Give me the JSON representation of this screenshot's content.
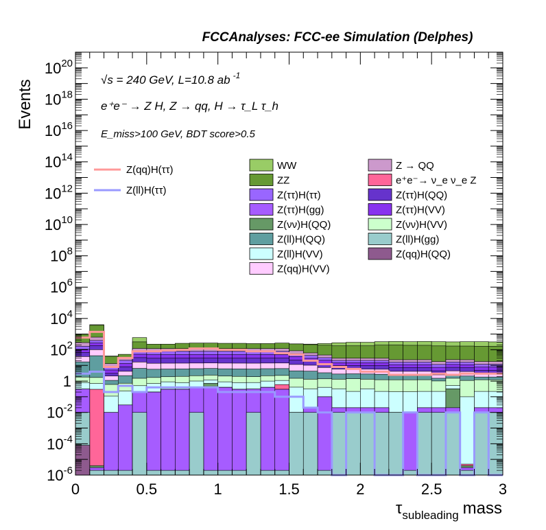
{
  "header": {
    "title": "FCCAnalyses: FCC-ee Simulation (Delphes)",
    "energy_line": "√s = 240 GeV, L=10.8 ab",
    "energy_exp": "-1",
    "process_line": "e⁺e⁻ → Z H, Z  → qq, H  → τ_L τ_h",
    "cut_line": "E_miss>100 GeV, BDT score>0.5"
  },
  "chart_data": {
    "type": "bar",
    "stacked": true,
    "log_y": true,
    "xlabel": "τ_subleading mass",
    "ylabel": "Events",
    "xlim": [
      0,
      3
    ],
    "ylim": [
      1e-06,
      1e+21
    ],
    "x_ticks": [
      "0",
      "0.5",
      "1",
      "1.5",
      "2",
      "2.5",
      "3"
    ],
    "y_ticks": [
      "10^-6",
      "10^-4",
      "10^-2",
      "1",
      "10^2",
      "10^4",
      "10^6",
      "10^8",
      "10^10",
      "10^12",
      "10^14",
      "10^16",
      "10^18",
      "10^20"
    ],
    "bin_edges": [
      0,
      0.1,
      0.2,
      0.3,
      0.4,
      0.5,
      0.6,
      0.7,
      0.8,
      0.9,
      1.0,
      1.1,
      1.2,
      1.3,
      1.4,
      1.5,
      1.6,
      1.7,
      1.8,
      1.9,
      2.0,
      2.1,
      2.2,
      2.3,
      2.4,
      2.5,
      2.6,
      2.7,
      2.8,
      2.9,
      3.0
    ],
    "stack_totals": [
      1000,
      4000,
      40,
      30,
      600,
      200,
      180,
      220,
      250,
      260,
      240,
      230,
      220,
      230,
      260,
      240,
      230,
      250,
      280,
      300,
      300,
      330,
      340,
      330,
      340,
      330,
      320,
      330,
      330,
      320
    ],
    "stack_layers": [
      {
        "name": "Z(qq)H(QQ)",
        "color": "#8e5a8e",
        "values": [
          8e-05,
          1e-06,
          1e-06,
          1e-06,
          1e-06,
          1e-06,
          1e-06,
          1e-06,
          1e-06,
          1e-06,
          1e-06,
          1e-06,
          1e-06,
          1e-06,
          1e-06,
          1e-06,
          1e-06,
          1e-06,
          1e-06,
          1e-06,
          1e-06,
          1e-06,
          1e-06,
          1e-06,
          1e-06,
          1e-06,
          1e-06,
          1e-06,
          1e-06,
          1e-06
        ]
      },
      {
        "name": "Z(ll)H(gg)",
        "color": "#99cccc",
        "values": [
          0.01,
          1e-06,
          1e-06,
          1e-06,
          0.01,
          1e-06,
          1e-06,
          1e-06,
          0.01,
          1e-06,
          1e-06,
          1e-06,
          0.01,
          1e-06,
          1e-06,
          0.01,
          0.01,
          1e-06,
          0.01,
          0.01,
          0.01,
          0.01,
          0.01,
          1e-06,
          0.01,
          0.01,
          0.01,
          1e-06,
          0.01,
          0.01
        ]
      },
      {
        "name": "Z(ττ)H(gg)",
        "color": "#a65cff",
        "values": [
          0.3,
          1e-06,
          0.01,
          0.03,
          0.2,
          0.2,
          0.3,
          0.3,
          0.4,
          0.4,
          0.4,
          0.3,
          0.3,
          0.4,
          0.3,
          1e-06,
          0.01,
          0.1,
          0.01,
          0.01,
          0.01,
          0.01,
          1e-06,
          0.01,
          0.01,
          0.01,
          0.01,
          1e-06,
          0.01,
          0.01
        ]
      },
      {
        "name": "Z(νν)H(QQ)",
        "color": "#669966",
        "values": [
          1e-06,
          1e-06,
          1e-06,
          1e-06,
          1e-06,
          1e-06,
          1e-06,
          1e-06,
          1e-06,
          0.3,
          1e-06,
          1e-06,
          1e-06,
          1e-06,
          1e-06,
          1e-06,
          1e-06,
          1e-06,
          1e-06,
          1e-06,
          1e-06,
          1e-06,
          1e-06,
          1e-06,
          1e-06,
          1e-06,
          0.3,
          1e-06,
          1e-06,
          1e-06
        ]
      },
      {
        "name": "e⁺e⁻→ ν_e ν_e Z",
        "color": "#ff6699",
        "values": [
          1e-06,
          0.3,
          1e-06,
          1e-06,
          1e-06,
          1e-06,
          1e-06,
          1e-06,
          1e-06,
          1e-06,
          1e-06,
          1e-06,
          1e-06,
          1e-06,
          0.3,
          1e-06,
          1e-06,
          1e-06,
          1e-06,
          1e-06,
          1e-06,
          1e-06,
          1e-06,
          1e-06,
          1e-06,
          1e-06,
          1e-06,
          1e-06,
          1e-06,
          1e-06
        ]
      },
      {
        "name": "Z(ll)H(VV)",
        "color": "#ccffff",
        "values": [
          0.5,
          0.4,
          0.1,
          0.2,
          0.3,
          0.5,
          0.6,
          0.5,
          0.6,
          0.5,
          0.5,
          0.5,
          0.5,
          0.6,
          0.5,
          0.4,
          0.3,
          0.3,
          0.3,
          0.2,
          0.3,
          0.2,
          0.2,
          0.2,
          0.2,
          0.2,
          0.2,
          0.1,
          0.2,
          0.2
        ]
      },
      {
        "name": "Z(νν)H(VV)",
        "color": "#ccffcc",
        "values": [
          1,
          1,
          0.5,
          0.5,
          1,
          1,
          1,
          1.2,
          1.2,
          1.2,
          1.2,
          1.2,
          1.1,
          1.2,
          1.2,
          1.1,
          1,
          1,
          1,
          1.2,
          1,
          1,
          1,
          1,
          1,
          0.8,
          1,
          1,
          1,
          1
        ]
      },
      {
        "name": "Z(ll)H(QQ)",
        "color": "#5f9ea0",
        "values": [
          15,
          40,
          0.5,
          1.5,
          5,
          4,
          4,
          4,
          4,
          4,
          4,
          4,
          4,
          4,
          4,
          3,
          3,
          2,
          1.5,
          1.5,
          1.5,
          1.5,
          1,
          1,
          1,
          0.5,
          1,
          1,
          0.6,
          0.6
        ]
      },
      {
        "name": "Z(qq)H(VV)",
        "color": "#ffccff",
        "values": [
          20,
          60,
          1,
          2,
          10,
          8,
          8,
          8,
          8,
          8,
          8,
          8,
          8,
          8,
          8,
          7,
          6,
          4,
          3,
          3,
          3,
          3,
          2,
          2,
          2,
          1,
          2,
          2,
          1,
          1
        ]
      },
      {
        "name": "Z(ττ)H(QQ)",
        "color": "#6633cc",
        "values": [
          30,
          80,
          1,
          4,
          15,
          15,
          15,
          15,
          15,
          15,
          15,
          15,
          15,
          15,
          15,
          10,
          8,
          6,
          4,
          4,
          4,
          4,
          3,
          3,
          3,
          2,
          3,
          3,
          2,
          2
        ]
      },
      {
        "name": "Z(ττ)H(VV)",
        "color": "#8833ee",
        "values": [
          40,
          90,
          2,
          5,
          20,
          20,
          20,
          20,
          20,
          20,
          20,
          20,
          20,
          20,
          20,
          15,
          10,
          8,
          5,
          5,
          5,
          5,
          4,
          4,
          4,
          3,
          4,
          4,
          3,
          3
        ]
      },
      {
        "name": "Z(ττ)H(ττ)",
        "color": "#9966ff",
        "values": [
          60,
          120,
          3,
          8,
          30,
          30,
          30,
          30,
          30,
          30,
          30,
          30,
          30,
          30,
          30,
          20,
          15,
          10,
          6,
          6,
          6,
          6,
          5,
          5,
          5,
          4,
          5,
          5,
          4,
          4
        ]
      },
      {
        "name": "Z → QQ",
        "color": "#cc99cc",
        "values": [
          120,
          250,
          5,
          10,
          40,
          40,
          40,
          40,
          40,
          40,
          40,
          40,
          40,
          40,
          40,
          30,
          20,
          15,
          8,
          8,
          8,
          8,
          7,
          7,
          7,
          6,
          7,
          7,
          6,
          6
        ]
      },
      {
        "name": "ZZ",
        "color": "#669933",
        "values": [
          700,
          3000,
          25,
          20,
          200,
          110,
          110,
          140,
          150,
          150,
          140,
          140,
          130,
          130,
          150,
          150,
          150,
          150,
          150,
          150,
          150,
          170,
          180,
          170,
          170,
          160,
          150,
          150,
          150,
          150
        ]
      },
      {
        "name": "WW",
        "color": "#99cc66",
        "values": [
          1000,
          4000,
          40,
          30,
          600,
          200,
          180,
          220,
          250,
          260,
          240,
          230,
          220,
          230,
          260,
          240,
          230,
          250,
          280,
          300,
          300,
          330,
          340,
          330,
          340,
          330,
          320,
          330,
          330,
          320
        ]
      }
    ],
    "overlays": [
      {
        "name": "Z(qq)H(ττ)",
        "color": "#ff9999",
        "values": [
          600,
          1400,
          8,
          30,
          80,
          80,
          90,
          100,
          120,
          120,
          100,
          100,
          80,
          80,
          60,
          50,
          20,
          12,
          8,
          6,
          4,
          4,
          2.5,
          2.5,
          2.5,
          3,
          2.5,
          3,
          3,
          3
        ]
      },
      {
        "name": "Z(ll)H(ττ)",
        "color": "#9999ff",
        "values": [
          3,
          4,
          0.2,
          0.5,
          0.2,
          0.4,
          0.4,
          0.4,
          0.4,
          0.4,
          0.2,
          0.2,
          0.2,
          0.2,
          0.1,
          0.1,
          0.02,
          0.01,
          1e-06,
          0.01,
          0.01,
          1e-06,
          1e-06,
          0.01,
          1e-06,
          1e-06,
          0.01,
          1e-06,
          0.01,
          1e-06
        ]
      }
    ],
    "legend": {
      "lines": [
        "Z(qq)H(ττ)",
        "Z(ll)H(ττ)"
      ],
      "fills_col1": [
        "WW",
        "ZZ",
        "Z(ττ)H(ττ)",
        "Z(ττ)H(gg)",
        "Z(νν)H(QQ)",
        "Z(ll)H(QQ)",
        "Z(ll)H(VV)",
        "Z(qq)H(VV)"
      ],
      "fills_col2": [
        "Z → QQ",
        "e⁺e⁻→ ν_e ν_e Z",
        "Z(ττ)H(QQ)",
        "Z(ττ)H(VV)",
        "Z(νν)H(VV)",
        "Z(ll)H(gg)",
        "Z(qq)H(QQ)"
      ]
    }
  }
}
